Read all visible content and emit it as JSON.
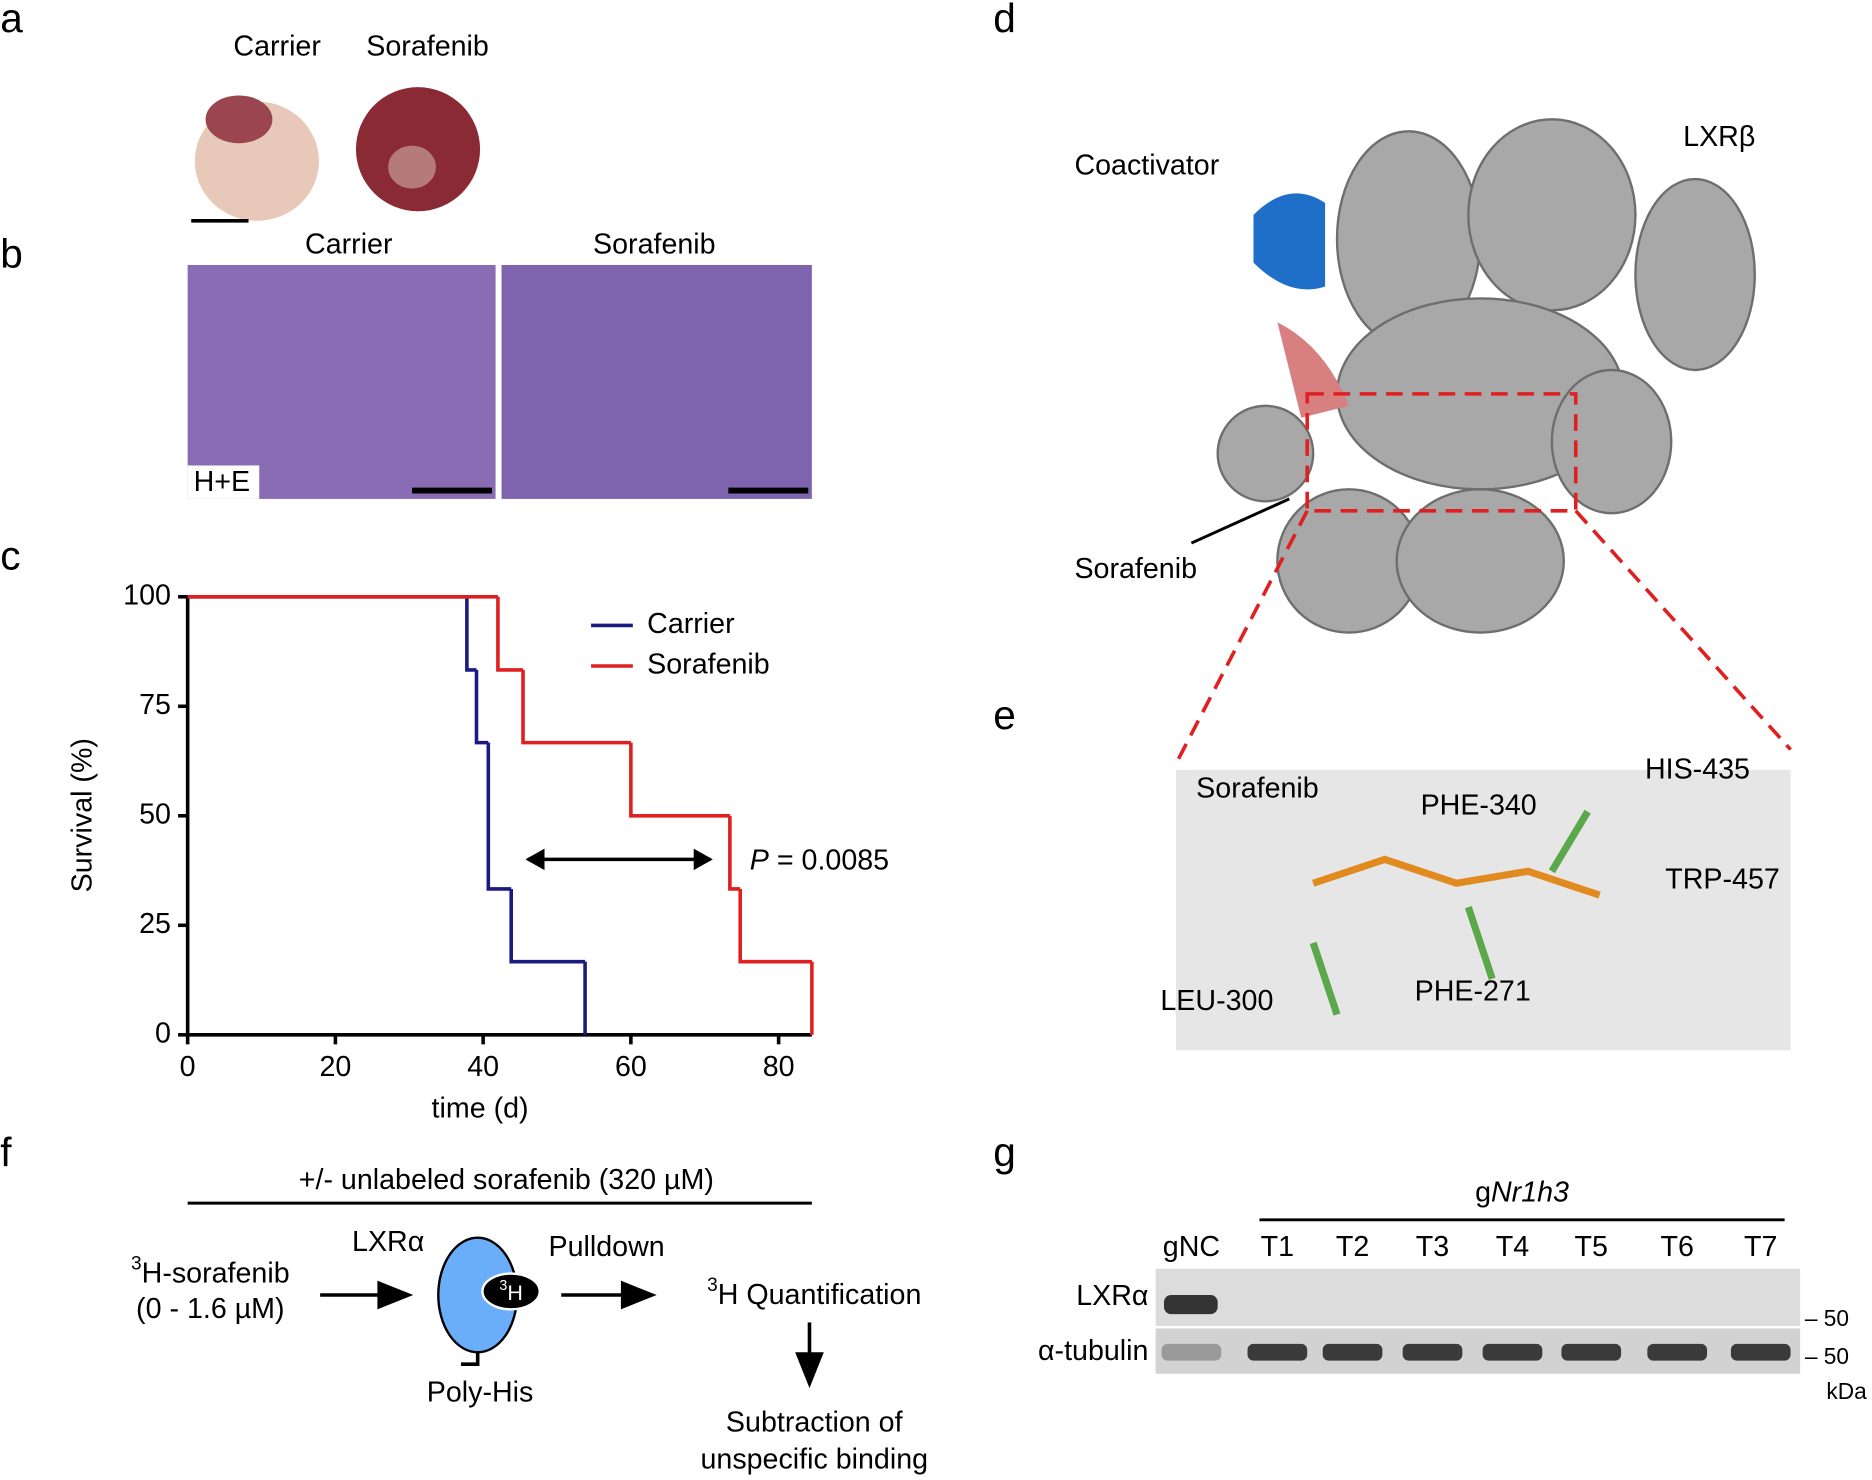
{
  "panel_labels": [
    "a",
    "b",
    "c",
    "d",
    "e",
    "f",
    "g"
  ],
  "panel_a": {
    "labels": [
      "Carrier",
      "Sorafenib"
    ]
  },
  "panel_b": {
    "labels": [
      "Carrier",
      "Sorafenib"
    ],
    "stain": "H+E"
  },
  "chart_data": {
    "type": "step",
    "xlabel": "time (d)",
    "ylabel": "Survival (%)",
    "xlim": [
      0,
      84.5
    ],
    "ylim": [
      0,
      100
    ],
    "xticks": [
      0,
      20,
      40,
      60,
      80
    ],
    "yticks": [
      0,
      25,
      50,
      75,
      100
    ],
    "series": [
      {
        "name": "Carrier",
        "color": "#1a1a80",
        "x": [
          0,
          37.8,
          39.1,
          40.7,
          43.8,
          53.8
        ],
        "values": [
          100,
          83.3,
          66.7,
          33.3,
          16.7,
          0
        ]
      },
      {
        "name": "Sorafenib",
        "color": "#e02020",
        "x": [
          0,
          42.0,
          45.4,
          60.0,
          73.4,
          74.8,
          84.5
        ],
        "values": [
          100,
          83.3,
          66.7,
          50,
          33.3,
          16.7,
          0
        ]
      }
    ],
    "p_symbol": "P",
    "p_text": "= 0.0085",
    "legend": "upper right"
  },
  "panel_d": {
    "coactivator": "Coactivator",
    "receptor": "LXRβ",
    "ligand": "Sorafenib"
  },
  "panel_e": {
    "labels": [
      "Sorafenib",
      "PHE-340",
      "HIS-435",
      "TRP-457",
      "LEU-300",
      "PHE-271"
    ]
  },
  "panel_f": {
    "header": "+/- unlabeled sorafenib (320 µM)",
    "ligand_sup": "3",
    "ligand": "H-sorafenib",
    "ligand_range": "(0 - 1.6 µM)",
    "protein": "LXRα",
    "tag_sup": "3",
    "tag": "H",
    "tag_label": "Poly-His",
    "step": "Pulldown",
    "quant_sup": "3",
    "quant": "H Quantification",
    "final": [
      "Subtraction of",
      "unspecific binding"
    ]
  },
  "panel_g": {
    "group_prefix": "g",
    "group_gene": "Nr1h3",
    "lanes": [
      "gNC",
      "T1",
      "T2",
      "T3",
      "T4",
      "T5",
      "T6",
      "T7"
    ],
    "rows": [
      "LXRα",
      "α-tubulin"
    ],
    "markers": [
      "– 50",
      "– 50"
    ],
    "unit": "kDa"
  }
}
